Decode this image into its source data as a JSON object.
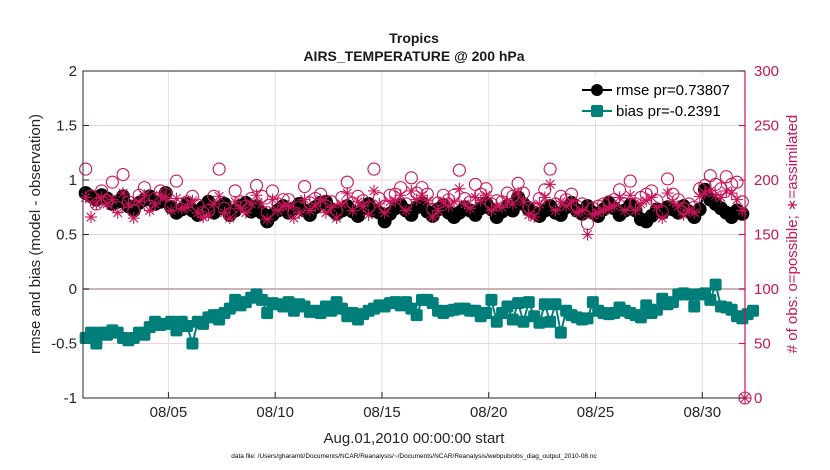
{
  "chart_data": {
    "type": "line",
    "title": "Tropics",
    "subtitle": "AIRS_TEMPERATURE @ 200 hPa",
    "xlabel": "Aug.01,2010 00:00:00 start",
    "ylabel": "rmse and bias (model - observation)",
    "ylabel_right": "# of obs: o=possible; ∗=assimilated",
    "footnote": "data file: /Users/gharamti/Documents/NCAR/Reanalysis/~/Documents/NCAR/Reanalysis/webpub/obs_diag_output_2010-08.nc",
    "xlim_days": [
      1,
      32
    ],
    "ylim": [
      -1,
      2
    ],
    "ylim_right": [
      0,
      300
    ],
    "x_ticks": [
      {
        "day": 5,
        "label": "08/05"
      },
      {
        "day": 10,
        "label": "08/10"
      },
      {
        "day": 15,
        "label": "08/15"
      },
      {
        "day": 20,
        "label": "08/20"
      },
      {
        "day": 25,
        "label": "08/25"
      },
      {
        "day": 30,
        "label": "08/30"
      }
    ],
    "y_ticks": [
      "-1",
      "-0.5",
      "0",
      "0.5",
      "1",
      "1.5",
      "2"
    ],
    "y_ticks_right": [
      "0",
      "50",
      "100",
      "150",
      "200",
      "250",
      "300"
    ],
    "grid": true,
    "legend": {
      "placement": "top-right",
      "entries": [
        "rmse pr=0.73807",
        "bias pr=-0.2391"
      ]
    },
    "colors": {
      "rmse": "#000000",
      "bias": "#007f7a",
      "obs": "#c8155a",
      "zero_line": "#c9b3ba",
      "grid": "#e0e0e0",
      "grid_right": "#f4cfdc"
    },
    "samples_per_day": 4,
    "series": [
      {
        "name": "rmse",
        "values": [
          0.88,
          0.85,
          0.82,
          0.86,
          0.83,
          0.78,
          0.8,
          0.85,
          0.76,
          0.72,
          0.79,
          0.82,
          0.85,
          0.78,
          0.8,
          0.88,
          0.75,
          0.7,
          0.73,
          0.78,
          0.72,
          0.68,
          0.75,
          0.8,
          0.7,
          0.74,
          0.78,
          0.68,
          0.72,
          0.76,
          0.79,
          0.71,
          0.76,
          0.7,
          0.62,
          0.68,
          0.72,
          0.76,
          0.7,
          0.74,
          0.78,
          0.72,
          0.68,
          0.75,
          0.79,
          0.8,
          0.73,
          0.69,
          0.72,
          0.76,
          0.71,
          0.67,
          0.74,
          0.78,
          0.72,
          0.7,
          0.62,
          0.69,
          0.74,
          0.77,
          0.72,
          0.68,
          0.75,
          0.79,
          0.71,
          0.67,
          0.73,
          0.77,
          0.7,
          0.66,
          0.7,
          0.75,
          0.72,
          0.68,
          0.74,
          0.79,
          0.73,
          0.66,
          0.71,
          0.76,
          0.72,
          0.84,
          0.78,
          0.73,
          0.7,
          0.67,
          0.72,
          0.76,
          0.7,
          0.68,
          0.75,
          0.79,
          0.72,
          0.69,
          0.76,
          0.7,
          0.67,
          0.73,
          0.79,
          0.74,
          0.68,
          0.72,
          0.77,
          0.72,
          0.64,
          0.62,
          0.67,
          0.73,
          0.7,
          0.75,
          0.73,
          0.7,
          0.76,
          0.71,
          0.66,
          0.73,
          0.91,
          0.82,
          0.78,
          0.74,
          0.7,
          0.66,
          0.72,
          0.69
        ]
      },
      {
        "name": "bias",
        "values": [
          -0.45,
          -0.4,
          -0.5,
          -0.4,
          -0.42,
          -0.38,
          -0.4,
          -0.45,
          -0.47,
          -0.45,
          -0.4,
          -0.42,
          -0.35,
          -0.3,
          -0.33,
          -0.32,
          -0.3,
          -0.38,
          -0.3,
          -0.34,
          -0.5,
          -0.3,
          -0.32,
          -0.26,
          -0.24,
          -0.28,
          -0.22,
          -0.18,
          -0.1,
          -0.15,
          -0.12,
          -0.08,
          -0.05,
          -0.1,
          -0.22,
          -0.13,
          -0.14,
          -0.16,
          -0.12,
          -0.2,
          -0.14,
          -0.16,
          -0.21,
          -0.2,
          -0.22,
          -0.16,
          -0.2,
          -0.12,
          -0.18,
          -0.25,
          -0.22,
          -0.28,
          -0.23,
          -0.2,
          -0.18,
          -0.15,
          -0.16,
          -0.13,
          -0.12,
          -0.15,
          -0.12,
          -0.18,
          -0.24,
          -0.1,
          -0.1,
          -0.13,
          -0.2,
          -0.22,
          -0.2,
          -0.19,
          -0.18,
          -0.18,
          -0.2,
          -0.2,
          -0.25,
          -0.22,
          -0.1,
          -0.3,
          -0.22,
          -0.16,
          -0.28,
          -0.13,
          -0.3,
          -0.12,
          -0.25,
          -0.31,
          -0.14,
          -0.3,
          -0.14,
          -0.4,
          -0.2,
          -0.24,
          -0.26,
          -0.28,
          -0.27,
          -0.12,
          -0.2,
          -0.22,
          -0.23,
          -0.22,
          -0.17,
          -0.2,
          -0.22,
          -0.24,
          -0.26,
          -0.15,
          -0.22,
          -0.19,
          -0.09,
          -0.14,
          -0.12,
          -0.05,
          -0.04,
          -0.05,
          -0.16,
          -0.05,
          -0.04,
          -0.1,
          0.04,
          -0.16,
          -0.17,
          -0.19,
          -0.25,
          -0.27,
          -0.23,
          -0.2
        ]
      },
      {
        "name": "possible",
        "values": [
          210,
          185,
          178,
          190,
          181,
          198,
          175,
          205,
          180,
          172,
          186,
          193,
          176,
          183,
          190,
          187,
          176,
          199,
          178,
          180,
          185,
          177,
          170,
          172,
          185,
          210,
          174,
          169,
          190,
          180,
          176,
          183,
          195,
          185,
          170,
          190,
          178,
          182,
          182,
          170,
          175,
          194,
          179,
          183,
          187,
          176,
          180,
          172,
          184,
          198,
          179,
          185,
          181,
          175,
          210,
          183,
          176,
          186,
          187,
          193,
          178,
          202,
          188,
          193,
          187,
          173,
          179,
          186,
          182,
          186,
          209,
          183,
          180,
          196,
          187,
          192,
          178,
          181,
          180,
          188,
          185,
          197,
          188,
          175,
          174,
          183,
          191,
          210,
          178,
          185,
          182,
          187,
          176,
          178,
          160,
          174,
          176,
          178,
          180,
          182,
          191,
          178,
          199,
          178,
          184,
          187,
          190,
          181,
          171,
          201,
          187,
          182,
          174,
          178,
          175,
          192,
          195,
          204,
          196,
          192,
          203,
          196,
          198,
          180
        ]
      },
      {
        "name": "assimilated",
        "values": [
          184,
          166,
          178,
          184,
          178,
          182,
          170,
          188,
          178,
          165,
          180,
          186,
          172,
          178,
          186,
          184,
          172,
          183,
          174,
          175,
          181,
          170,
          166,
          168,
          178,
          185,
          170,
          165,
          180,
          174,
          170,
          178,
          186,
          178,
          164,
          182,
          172,
          176,
          176,
          165,
          170,
          182,
          172,
          176,
          182,
          170,
          175,
          165,
          178,
          188,
          172,
          180,
          176,
          168,
          190,
          178,
          170,
          180,
          181,
          186,
          172,
          190,
          182,
          186,
          181,
          166,
          172,
          180,
          176,
          180,
          192,
          178,
          174,
          184,
          181,
          186,
          172,
          176,
          175,
          180,
          178,
          188,
          180,
          168,
          166,
          178,
          184,
          196,
          172,
          180,
          176,
          180,
          170,
          172,
          150,
          168,
          170,
          172,
          174,
          176,
          184,
          172,
          186,
          172,
          178,
          181,
          184,
          175,
          165,
          188,
          180,
          176,
          168,
          172,
          170,
          185,
          188,
          190,
          186,
          184,
          190,
          188,
          182,
          172
        ]
      }
    ]
  }
}
